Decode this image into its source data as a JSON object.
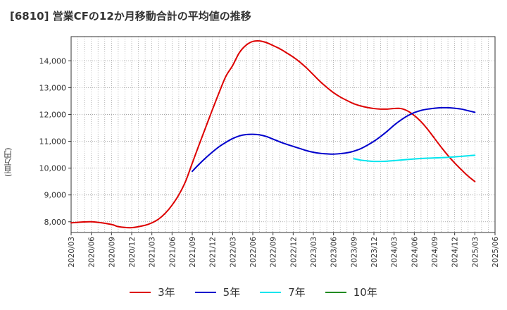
{
  "title": "[6810]  営業CFの12か月移動合計の平均値の推移",
  "chart_data": {
    "type": "line",
    "title": "[6810]  営業CFの12か月移動合計の平均値の推移",
    "ylabel": "(百万円)",
    "ylim": [
      7600,
      14900
    ],
    "yticks": [
      8000,
      9000,
      10000,
      11000,
      12000,
      13000,
      14000
    ],
    "ytick_labels": [
      "8,000",
      "9,000",
      "10,000",
      "11,000",
      "12,000",
      "13,000",
      "14,000"
    ],
    "xlim": [
      "2020/03",
      "2025/06"
    ],
    "xtick_labels": [
      "2020/03",
      "2020/06",
      "2020/09",
      "2020/12",
      "2021/03",
      "2021/06",
      "2021/09",
      "2021/12",
      "2022/03",
      "2022/06",
      "2022/09",
      "2022/12",
      "2023/03",
      "2023/06",
      "2023/09",
      "2023/12",
      "2024/03",
      "2024/06",
      "2024/09",
      "2024/12",
      "2025/03",
      "2025/06"
    ],
    "grid": true,
    "legend_position": "bottom",
    "series": [
      {
        "name": "3年",
        "color": "#dd0000",
        "points": [
          [
            "2020/03",
            7960
          ],
          [
            "2020/06",
            8000
          ],
          [
            "2020/09",
            7900
          ],
          [
            "2020/10",
            7820
          ],
          [
            "2020/12",
            7780
          ],
          [
            "2021/02",
            7870
          ],
          [
            "2021/03",
            7960
          ],
          [
            "2021/04",
            8100
          ],
          [
            "2021/05",
            8320
          ],
          [
            "2021/06",
            8620
          ],
          [
            "2021/07",
            9000
          ],
          [
            "2021/08",
            9500
          ],
          [
            "2021/09",
            10180
          ],
          [
            "2021/10",
            10860
          ],
          [
            "2021/11",
            11520
          ],
          [
            "2021/12",
            12180
          ],
          [
            "2022/01",
            12820
          ],
          [
            "2022/02",
            13420
          ],
          [
            "2022/03",
            13820
          ],
          [
            "2022/04",
            14300
          ],
          [
            "2022/05",
            14580
          ],
          [
            "2022/06",
            14720
          ],
          [
            "2022/07",
            14740
          ],
          [
            "2022/08",
            14680
          ],
          [
            "2022/09",
            14570
          ],
          [
            "2022/10",
            14450
          ],
          [
            "2022/11",
            14300
          ],
          [
            "2022/12",
            14140
          ],
          [
            "2023/01",
            13950
          ],
          [
            "2023/02",
            13730
          ],
          [
            "2023/03",
            13480
          ],
          [
            "2023/04",
            13230
          ],
          [
            "2023/05",
            13010
          ],
          [
            "2023/06",
            12810
          ],
          [
            "2023/07",
            12650
          ],
          [
            "2023/08",
            12520
          ],
          [
            "2023/09",
            12400
          ],
          [
            "2023/10",
            12320
          ],
          [
            "2023/11",
            12260
          ],
          [
            "2023/12",
            12220
          ],
          [
            "2024/01",
            12200
          ],
          [
            "2024/02",
            12200
          ],
          [
            "2024/03",
            12220
          ],
          [
            "2024/04",
            12220
          ],
          [
            "2024/05",
            12130
          ],
          [
            "2024/06",
            11960
          ],
          [
            "2024/07",
            11730
          ],
          [
            "2024/08",
            11440
          ],
          [
            "2024/09",
            11110
          ],
          [
            "2024/10",
            10780
          ],
          [
            "2024/11",
            10470
          ],
          [
            "2024/12",
            10190
          ],
          [
            "2025/01",
            9940
          ],
          [
            "2025/02",
            9700
          ],
          [
            "2025/03",
            9500
          ]
        ]
      },
      {
        "name": "5年",
        "color": "#0000cc",
        "points": [
          [
            "2021/09",
            9880
          ],
          [
            "2021/10",
            10140
          ],
          [
            "2021/11",
            10380
          ],
          [
            "2021/12",
            10600
          ],
          [
            "2022/01",
            10800
          ],
          [
            "2022/02",
            10960
          ],
          [
            "2022/03",
            11100
          ],
          [
            "2022/04",
            11200
          ],
          [
            "2022/05",
            11250
          ],
          [
            "2022/06",
            11260
          ],
          [
            "2022/07",
            11240
          ],
          [
            "2022/08",
            11180
          ],
          [
            "2022/09",
            11080
          ],
          [
            "2022/10",
            10980
          ],
          [
            "2022/11",
            10890
          ],
          [
            "2022/12",
            10810
          ],
          [
            "2023/01",
            10730
          ],
          [
            "2023/02",
            10650
          ],
          [
            "2023/03",
            10590
          ],
          [
            "2023/04",
            10550
          ],
          [
            "2023/05",
            10530
          ],
          [
            "2023/06",
            10520
          ],
          [
            "2023/07",
            10540
          ],
          [
            "2023/08",
            10570
          ],
          [
            "2023/09",
            10630
          ],
          [
            "2023/10",
            10720
          ],
          [
            "2023/11",
            10850
          ],
          [
            "2023/12",
            11000
          ],
          [
            "2024/01",
            11180
          ],
          [
            "2024/02",
            11380
          ],
          [
            "2024/03",
            11600
          ],
          [
            "2024/04",
            11790
          ],
          [
            "2024/05",
            11950
          ],
          [
            "2024/06",
            12070
          ],
          [
            "2024/07",
            12150
          ],
          [
            "2024/08",
            12200
          ],
          [
            "2024/09",
            12230
          ],
          [
            "2024/10",
            12250
          ],
          [
            "2024/11",
            12250
          ],
          [
            "2024/12",
            12230
          ],
          [
            "2025/01",
            12200
          ],
          [
            "2025/02",
            12140
          ],
          [
            "2025/03",
            12080
          ]
        ]
      },
      {
        "name": "7年",
        "color": "#00e5ee",
        "points": [
          [
            "2023/09",
            10350
          ],
          [
            "2023/10",
            10300
          ],
          [
            "2023/11",
            10270
          ],
          [
            "2023/12",
            10250
          ],
          [
            "2024/01",
            10250
          ],
          [
            "2024/02",
            10260
          ],
          [
            "2024/03",
            10280
          ],
          [
            "2024/04",
            10300
          ],
          [
            "2024/05",
            10320
          ],
          [
            "2024/06",
            10340
          ],
          [
            "2024/07",
            10360
          ],
          [
            "2024/08",
            10370
          ],
          [
            "2024/09",
            10380
          ],
          [
            "2024/10",
            10390
          ],
          [
            "2024/11",
            10400
          ],
          [
            "2024/12",
            10420
          ],
          [
            "2025/01",
            10440
          ],
          [
            "2025/02",
            10460
          ],
          [
            "2025/03",
            10480
          ]
        ]
      },
      {
        "name": "10年",
        "color": "#228b22",
        "points": []
      }
    ]
  }
}
